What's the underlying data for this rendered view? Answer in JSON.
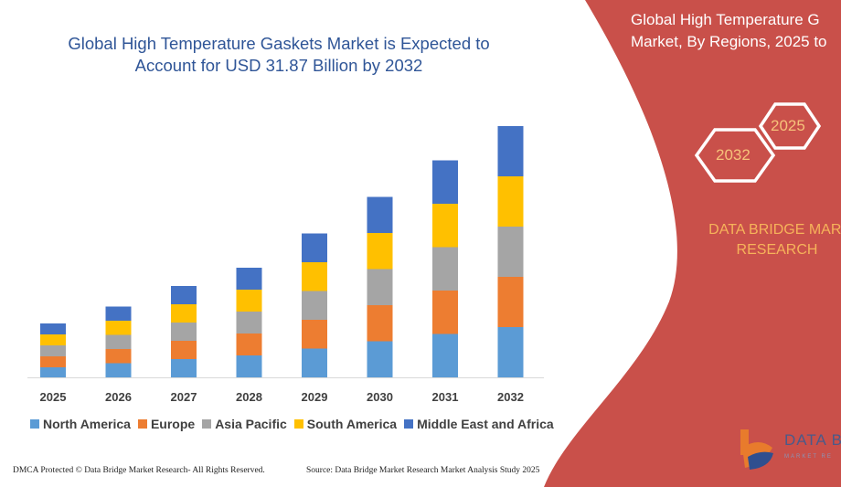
{
  "title": "Global High Temperature Gaskets Market is Expected to Account for USD 31.87 Billion by 2032",
  "side_panel": {
    "title_line1": "Global High Temperature G",
    "title_line2": "Market, By Regions, 2025 to",
    "hex_start": "2025",
    "hex_end": "2032",
    "brand_line1": "DATA BRIDGE MARI",
    "brand_line2": "RESEARCH",
    "logo_text": "DATA BRI",
    "logo_subtext": "MARKET RE",
    "panel_color": "#c9504a"
  },
  "footer": {
    "copyright": "DMCA Protected © Data Bridge Market Research-  All Rights Reserved.",
    "source": "Source: Data Bridge Market Research  Market Analysis Study 2025"
  },
  "chart_data": {
    "type": "bar",
    "stacked": true,
    "categories": [
      "2025",
      "2026",
      "2027",
      "2028",
      "2029",
      "2030",
      "2031",
      "2032"
    ],
    "series": [
      {
        "name": "North America",
        "color": "#5b9bd5",
        "values": [
          11,
          15.5,
          20,
          24,
          31.5,
          39.5,
          47.5,
          55
        ]
      },
      {
        "name": "Europe",
        "color": "#ed7d31",
        "values": [
          12,
          15.5,
          20,
          24,
          31.5,
          39.5,
          47.5,
          55
        ]
      },
      {
        "name": "Asia Pacific",
        "color": "#a5a5a5",
        "values": [
          12,
          15.5,
          20,
          24,
          31.5,
          39.5,
          47.5,
          55
        ]
      },
      {
        "name": "South America",
        "color": "#ffc000",
        "values": [
          12,
          15.5,
          20,
          24,
          31.5,
          39.5,
          47.5,
          55
        ]
      },
      {
        "name": "Middle East and Africa",
        "color": "#4472c4",
        "values": [
          12,
          15.5,
          20,
          24,
          31.5,
          39.5,
          47.5,
          55
        ]
      }
    ],
    "ylim": [
      0,
      280
    ],
    "y_axis_shown": false,
    "grid": false,
    "legend_position": "bottom"
  }
}
